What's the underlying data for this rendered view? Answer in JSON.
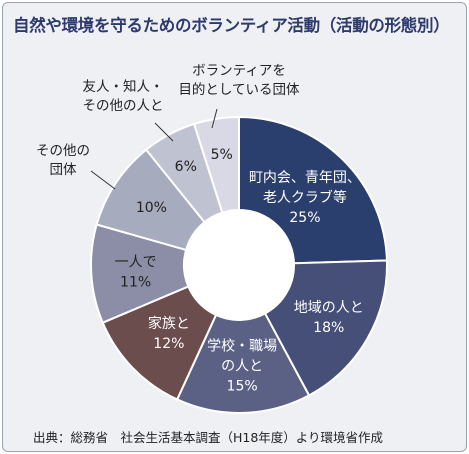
{
  "chart_data": {
    "type": "pie",
    "title": "自然や環境を守るためのボランティア活動（活動の形態別）",
    "source": "出典：総務省　社会生活基本調査（H18年度）より環境省作成",
    "slices": [
      {
        "lines": [
          "町内会、青年団、",
          "老人クラブ等"
        ],
        "value": 25,
        "value_label": "25%",
        "color": "#2b3f6e",
        "text_color": "#ffffff"
      },
      {
        "lines": [
          "地域の人と"
        ],
        "value": 18,
        "value_label": "18%",
        "color": "#454f77",
        "text_color": "#ffffff"
      },
      {
        "lines": [
          "学校・職場",
          "の人と"
        ],
        "value": 15,
        "value_label": "15%",
        "color": "#5b6185",
        "text_color": "#ffffff"
      },
      {
        "lines": [
          "家族と"
        ],
        "value": 12,
        "value_label": "12%",
        "color": "#6b4d4d",
        "text_color": "#ffffff"
      },
      {
        "lines": [
          "一人で"
        ],
        "value": 11,
        "value_label": "11%",
        "color": "#8b8ea6",
        "text_color": "#222222",
        "outside": false
      },
      {
        "lines": [
          "その他の",
          "団体"
        ],
        "value": 10,
        "value_label": "10%",
        "color": "#a7abbe",
        "text_color": "#222222",
        "outside": true
      },
      {
        "lines": [
          "友人・知人・",
          "その他の人と"
        ],
        "value": 6,
        "value_label": "6%",
        "color": "#bfc2d0",
        "text_color": "#222222",
        "outside": true
      },
      {
        "lines": [
          "ボランティアを",
          "目的としている団体"
        ],
        "value": 5,
        "value_label": "5%",
        "color": "#d8d9e4",
        "text_color": "#222222",
        "outside": true
      }
    ]
  }
}
